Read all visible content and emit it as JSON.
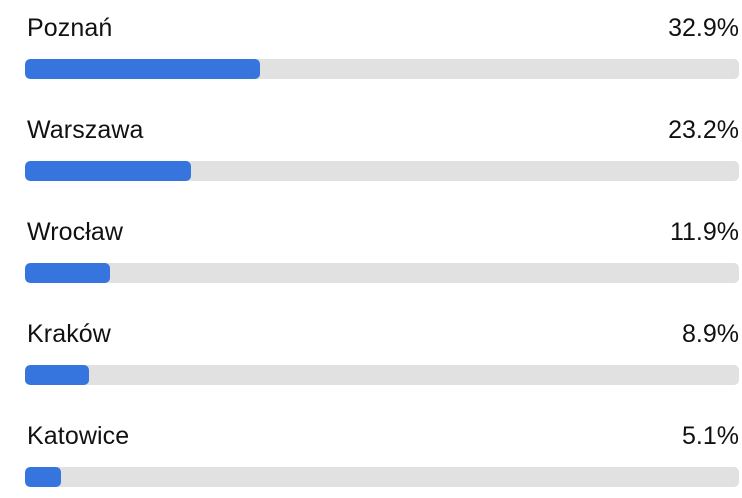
{
  "chart_data": {
    "type": "bar",
    "orientation": "horizontal",
    "categories": [
      "Poznań",
      "Warszawa",
      "Wrocław",
      "Kraków",
      "Katowice"
    ],
    "values": [
      32.9,
      23.2,
      11.9,
      8.9,
      5.1
    ],
    "value_labels": [
      "32.9%",
      "23.2%",
      "11.9%",
      "8.9%",
      "5.1%"
    ],
    "unit": "%",
    "xlim": [
      0,
      100
    ],
    "grid": false,
    "legend": "none"
  },
  "colors": {
    "bar_fill": "#3675dd",
    "track": "#e1e1e1",
    "text": "#111111",
    "background": "#ffffff"
  }
}
